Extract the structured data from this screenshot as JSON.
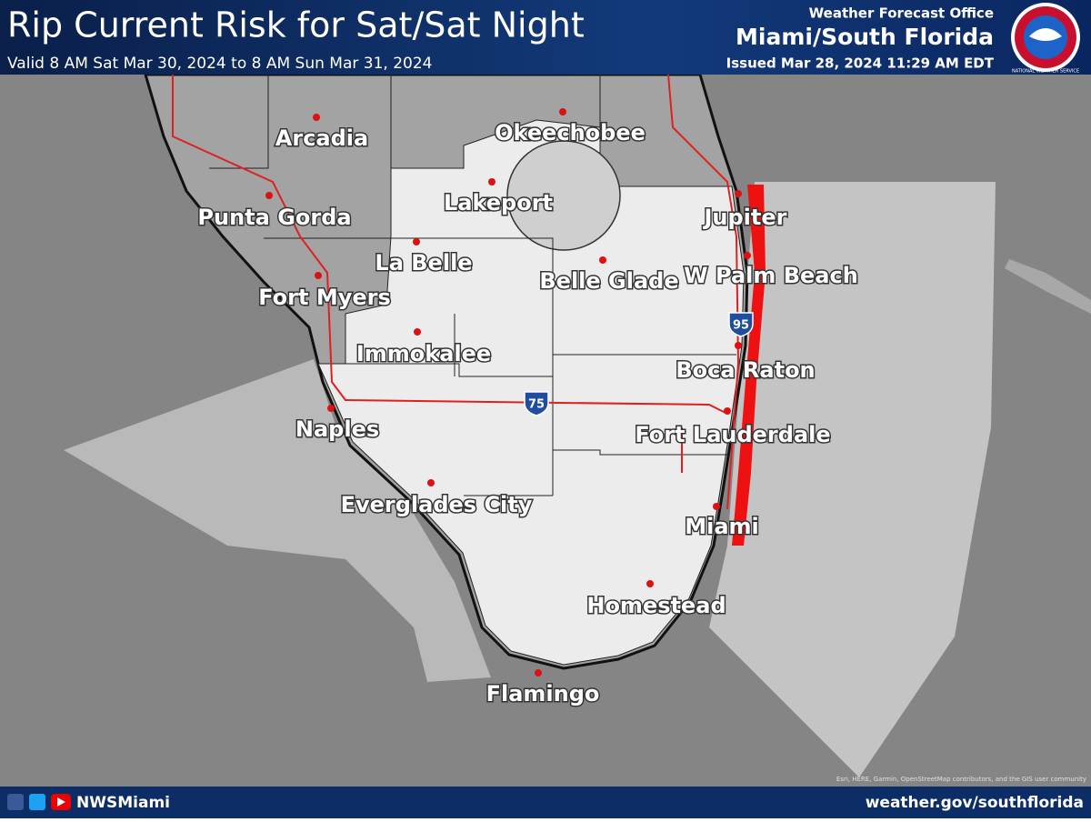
{
  "header": {
    "title": "Rip Current Risk for Sat/Sat Night",
    "valid": "Valid 8 AM Sat Mar 30, 2024 to 8 AM Sun Mar 31, 2024",
    "office_label": "Weather Forecast Office",
    "office": "Miami/South Florida",
    "issued": "Issued Mar 28, 2024 11:29 AM EDT",
    "logo": "NATIONAL WEATHER SERVICE"
  },
  "map": {
    "cities": [
      "Arcadia",
      "Okeechobee",
      "Punta Gorda",
      "Lakeport",
      "Jupiter",
      "La Belle",
      "Belle Glade",
      "W Palm Beach",
      "Fort Myers",
      "Immokalee",
      "Boca Raton",
      "Naples",
      "Fort Lauderdale",
      "Everglades City",
      "Miami",
      "Homestead",
      "Flamingo"
    ],
    "shields": [
      "95",
      "75"
    ],
    "attribution": "Esri, HERE, Garmin, OpenStreetMap contributors, and the GIS user community"
  },
  "footer": {
    "handle": "NWSMiami",
    "url": "weather.gov/southflorida"
  }
}
